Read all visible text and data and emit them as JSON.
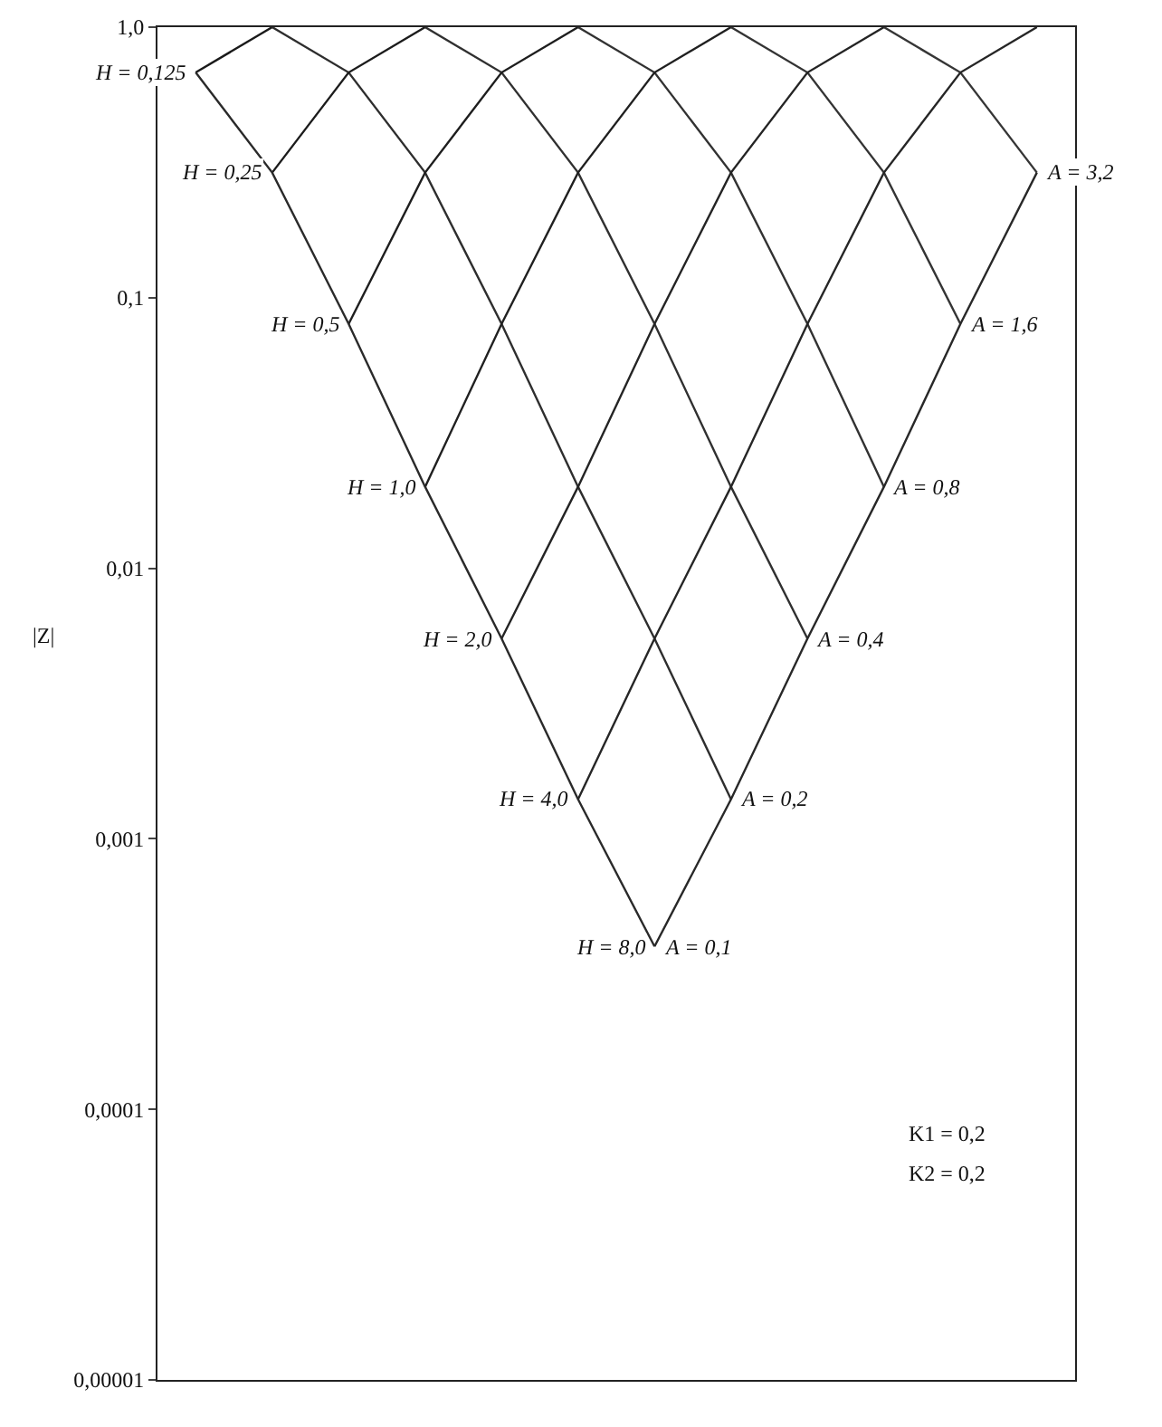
{
  "chart_data": {
    "type": "line",
    "ylabel": "|Z|",
    "log": true,
    "grid": false,
    "legend": false,
    "marker": "none",
    "line_style": "solid",
    "categories": [
      null,
      null,
      null,
      null,
      null,
      null,
      null,
      null,
      null,
      null,
      null,
      null
    ],
    "ylim": [
      1e-05,
      1
    ],
    "yticks": [
      {
        "value": 1,
        "label": "1,0"
      },
      {
        "value": 0.1,
        "label": "0,1"
      },
      {
        "value": 0.01,
        "label": "0,01"
      },
      {
        "value": 0.001,
        "label": "0,001"
      },
      {
        "value": 0.0001,
        "label": "0,0001"
      },
      {
        "value": 1e-05,
        "label": "0,00001"
      }
    ],
    "series": [
      {
        "name": "H = 0,125",
        "color": "#1a1a1a",
        "values": [
          0.68,
          1,
          null,
          null,
          null,
          null,
          null,
          null,
          null,
          null,
          null,
          null
        ]
      },
      {
        "name": "A = 0,2",
        "color": "#2e2e2e",
        "values": [
          null,
          1,
          0.68,
          0.29,
          0.08,
          0.02,
          0.0055,
          0.0014,
          null,
          null,
          null,
          null
        ]
      },
      {
        "name": "H = 0,25",
        "color": "#1c1c1c",
        "values": [
          null,
          0.29,
          0.68,
          1,
          null,
          null,
          null,
          null,
          null,
          null,
          null,
          null
        ]
      },
      {
        "name": "A = 0,4",
        "color": "#303030",
        "values": [
          null,
          null,
          null,
          1,
          0.68,
          0.29,
          0.08,
          0.02,
          0.0055,
          null,
          null,
          null
        ]
      },
      {
        "name": "H = 0,5",
        "color": "#1e1e1e",
        "values": [
          null,
          null,
          0.08,
          0.29,
          0.68,
          1,
          null,
          null,
          null,
          null,
          null,
          null
        ]
      },
      {
        "name": "A = 0,8",
        "color": "#323232",
        "values": [
          null,
          null,
          null,
          null,
          null,
          1,
          0.68,
          0.29,
          0.08,
          0.02,
          null,
          null
        ]
      },
      {
        "name": "H = 1,0",
        "color": "#202020",
        "values": [
          null,
          null,
          null,
          0.02,
          0.08,
          0.29,
          0.68,
          1,
          null,
          null,
          null,
          null
        ]
      },
      {
        "name": "A = 1,6",
        "color": "#343434",
        "values": [
          null,
          null,
          null,
          null,
          null,
          null,
          null,
          1,
          0.68,
          0.29,
          0.08,
          null
        ]
      },
      {
        "name": "H = 2,0",
        "color": "#242424",
        "values": [
          null,
          null,
          null,
          null,
          0.0055,
          0.02,
          0.08,
          0.29,
          0.68,
          1,
          null,
          null
        ]
      },
      {
        "name": "A = 3,2",
        "color": "#363636",
        "values": [
          null,
          null,
          null,
          null,
          null,
          null,
          null,
          null,
          null,
          1,
          0.68,
          0.29
        ]
      },
      {
        "name": "H = 4,0",
        "color": "#262626",
        "values": [
          null,
          null,
          null,
          null,
          null,
          0.0014,
          0.0055,
          0.02,
          0.08,
          0.29,
          0.68,
          1
        ]
      },
      {
        "name": "H = 8,0",
        "color": "#282828",
        "values": [
          null,
          null,
          null,
          null,
          null,
          null,
          0.0004,
          0.0014,
          0.0055,
          0.02,
          0.08,
          0.29
        ]
      },
      {
        "name": "A = 0,1",
        "color": "#2a2a2a",
        "values": [
          0.68,
          0.29,
          0.08,
          0.02,
          0.0055,
          0.0014,
          0.0004,
          null,
          null,
          null,
          null,
          null
        ]
      }
    ],
    "annotations": [
      "K1 = 0,2",
      "K2 = 0,2"
    ]
  }
}
